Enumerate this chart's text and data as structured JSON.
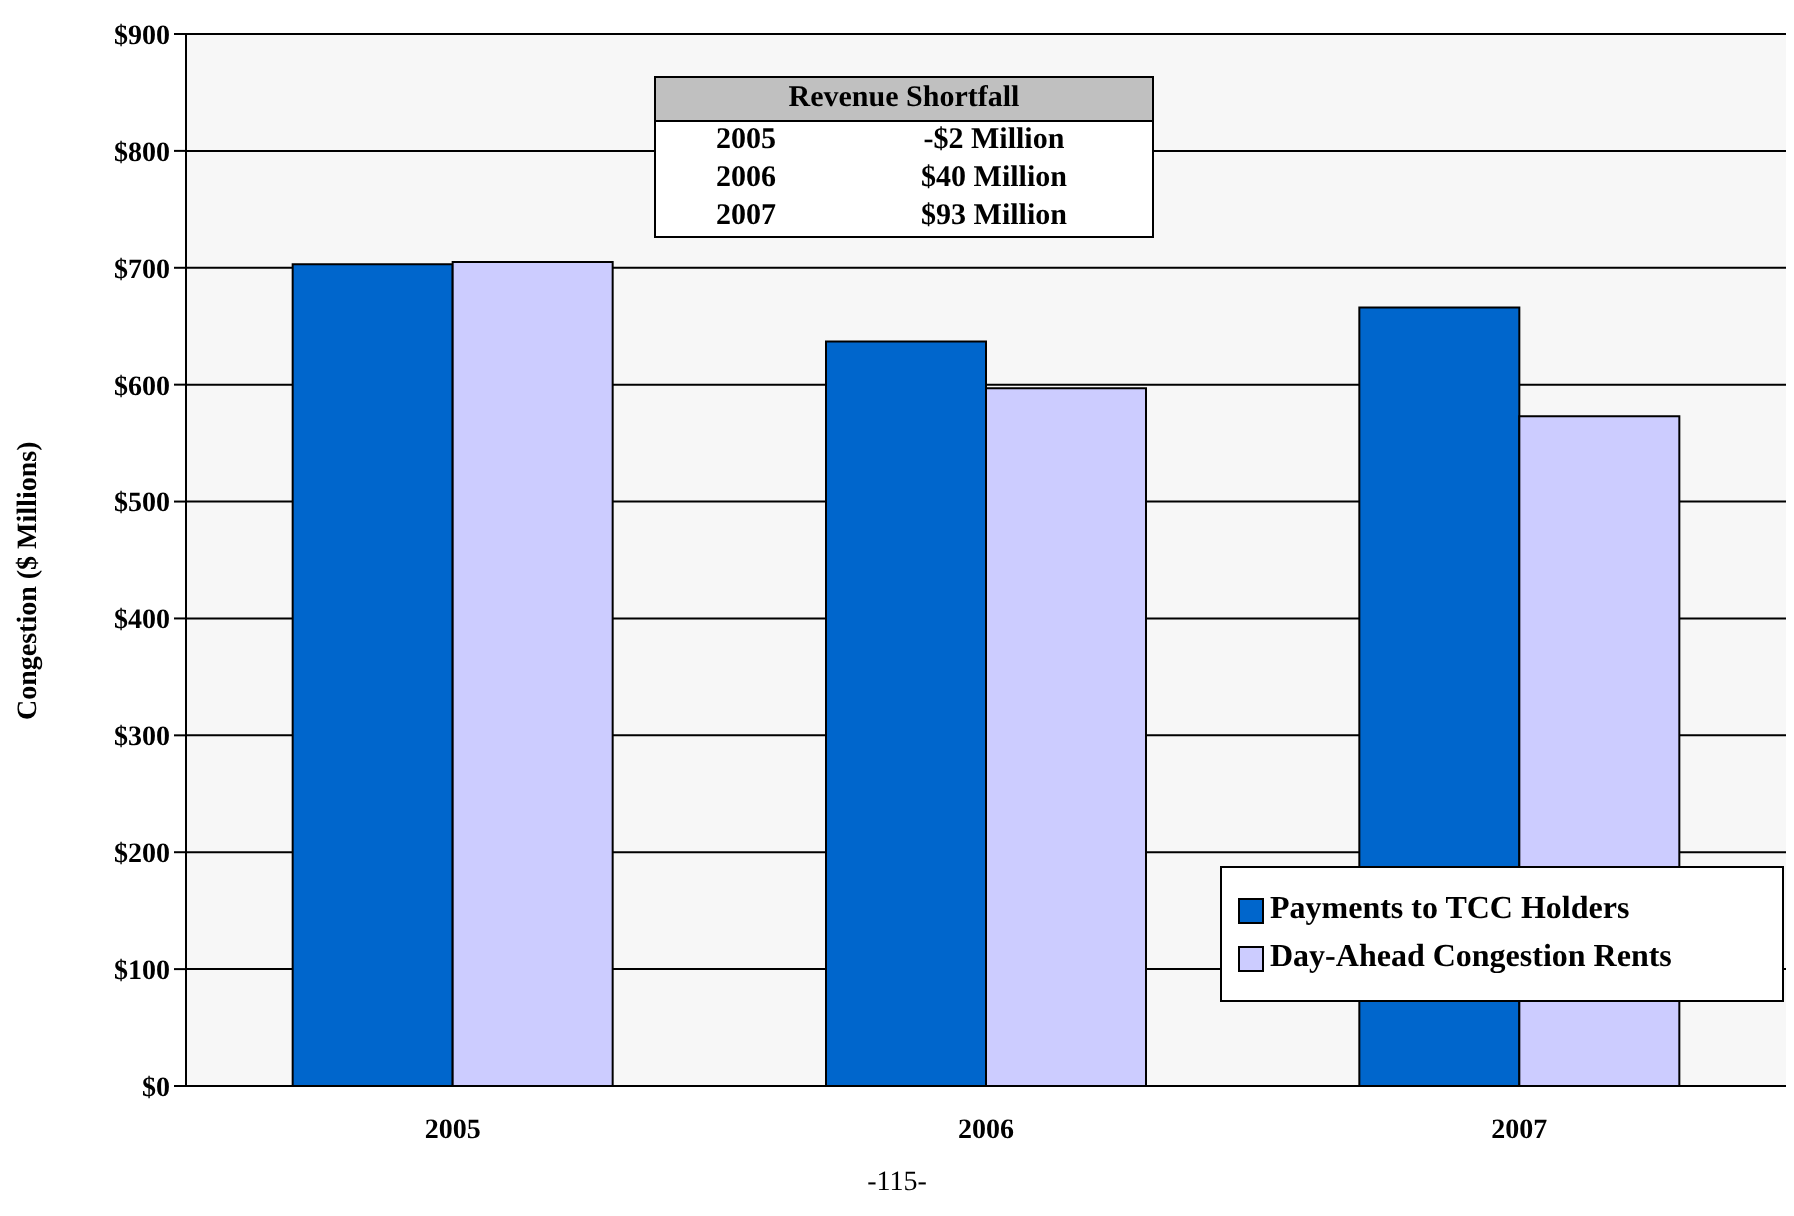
{
  "chart_data": {
    "type": "bar",
    "ylabel": "Congestion ($ Millions)",
    "categories": [
      "2005",
      "2006",
      "2007"
    ],
    "series": [
      {
        "name": "Payments to TCC Holders",
        "color": "#0066cc",
        "values": [
          703,
          637,
          666
        ]
      },
      {
        "name": "Day-Ahead Congestion Rents",
        "color": "#ccccff",
        "values": [
          705,
          597,
          573
        ]
      }
    ],
    "ylim": [
      0,
      900
    ],
    "yticks": [
      {
        "value": 0,
        "label": "$0"
      },
      {
        "value": 100,
        "label": "$100"
      },
      {
        "value": 200,
        "label": "$200"
      },
      {
        "value": 300,
        "label": "$300"
      },
      {
        "value": 400,
        "label": "$400"
      },
      {
        "value": 500,
        "label": "$500"
      },
      {
        "value": 600,
        "label": "$600"
      },
      {
        "value": 700,
        "label": "$700"
      },
      {
        "value": 800,
        "label": "$800"
      },
      {
        "value": 900,
        "label": "$900"
      }
    ],
    "grid": "y",
    "legend": "bottom right",
    "annotations": [
      "Revenue Shortfall",
      "2005",
      "-$2 Million",
      "2006",
      "$40 Million",
      "2007",
      "$93 Million",
      "-115-"
    ]
  }
}
